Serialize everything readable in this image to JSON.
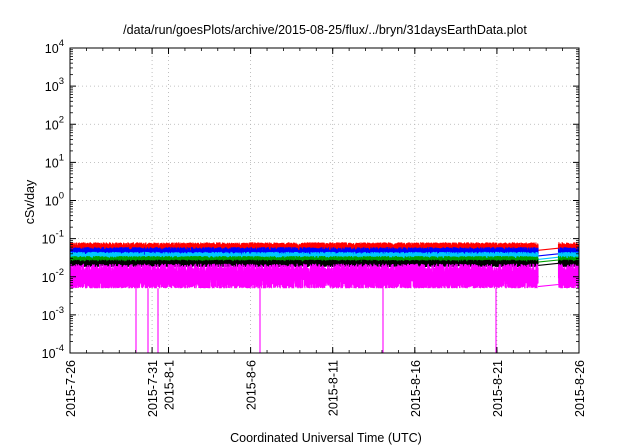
{
  "chart_data": {
    "type": "line",
    "title": "/data/run/goesPlots/archive/2015-08-25/flux/../bryn/31daysEarthData.plot",
    "xlabel": "Coordinated Universal Time (UTC)",
    "ylabel": "cSv/day",
    "xlim": [
      "2015-07-26",
      "2015-08-26"
    ],
    "ylim": [
      0.0001,
      10000
    ],
    "yscale": "log",
    "grid": true,
    "legend": "none",
    "x_ticks": [
      "2015-7-26",
      "2015-7-31",
      "2015-8-1",
      "2015-8-6",
      "2015-8-11",
      "2015-8-16",
      "2015-8-21",
      "2015-8-26"
    ],
    "x_tick_dates": [
      "2015-07-26",
      "2015-07-31",
      "2015-08-01",
      "2015-08-06",
      "2015-08-11",
      "2015-08-16",
      "2015-08-21",
      "2015-08-26"
    ],
    "y_ticks": [
      {
        "value": 0.0001,
        "base": "10",
        "exp": "-4"
      },
      {
        "value": 0.001,
        "base": "10",
        "exp": "-3"
      },
      {
        "value": 0.01,
        "base": "10",
        "exp": "-2"
      },
      {
        "value": 0.1,
        "base": "10",
        "exp": "-1"
      },
      {
        "value": 1,
        "base": "10",
        "exp": "0"
      },
      {
        "value": 10,
        "base": "10",
        "exp": "1"
      },
      {
        "value": 100,
        "base": "10",
        "exp": "2"
      },
      {
        "value": 1000,
        "base": "10",
        "exp": "3"
      },
      {
        "value": 10000,
        "base": "10",
        "exp": "4"
      }
    ],
    "data_gap": [
      "2015-08-23T12:00",
      "2015-08-24T18:00"
    ],
    "dropouts": [
      "2015-07-30T00:00",
      "2015-07-30T18:00",
      "2015-07-31T09:00",
      "2015-08-06T14:00",
      "2015-08-14T01:00",
      "2015-08-20T22:00"
    ],
    "series": [
      {
        "color": "#ff0000",
        "peak": 0.08,
        "base": 0.045
      },
      {
        "color": "#0000ff",
        "peak": 0.06,
        "base": 0.032
      },
      {
        "color": "#00c8ff",
        "peak": 0.045,
        "base": 0.026
      },
      {
        "color": "#00a000",
        "peak": 0.035,
        "base": 0.022
      },
      {
        "color": "#000000",
        "peak": 0.028,
        "base": 0.018
      },
      {
        "color": "#ff00ff",
        "peak": 0.022,
        "base": 0.005
      }
    ]
  }
}
